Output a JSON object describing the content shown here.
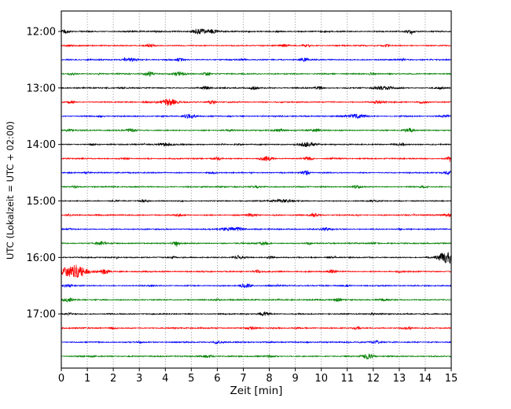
{
  "axes": {
    "xlabel": "Zeit  [min]",
    "ylabel": "UTC (Lokalzeit = UTC + 02:00)"
  },
  "chart_data": {
    "type": "line",
    "subtype": "helicorder-seismogram",
    "title": "",
    "xlabel": "Zeit  [min]",
    "ylabel": "UTC (Lokalzeit = UTC + 02:00)",
    "xlim": [
      0,
      15
    ],
    "minutes_per_line": 15,
    "grid": {
      "vertical_dotted": true,
      "horizontal": false
    },
    "x_ticks": [
      "0",
      "1",
      "2",
      "3",
      "4",
      "5",
      "6",
      "7",
      "8",
      "9",
      "10",
      "11",
      "12",
      "13",
      "14",
      "15"
    ],
    "y_tick_labels": [
      "12:00",
      "13:00",
      "14:00",
      "15:00",
      "16:00",
      "17:00"
    ],
    "color_cycle": [
      "#000000",
      "#ff0000",
      "#0000ff",
      "#008000"
    ],
    "traces": [
      {
        "start": "12:00",
        "label": "12:00",
        "color": "#000000",
        "base": 0.65,
        "bursts": [
          [
            0.15,
            1.8,
            0.12
          ],
          [
            5.35,
            3.2,
            0.22
          ],
          [
            5.8,
            1.6,
            0.15
          ],
          [
            8.3,
            1.2,
            0.1
          ],
          [
            13.4,
            1.6,
            0.12
          ],
          [
            10.1,
            0.9,
            0.1
          ]
        ]
      },
      {
        "start": "12:15",
        "label": "",
        "color": "#ff0000",
        "base": 0.65,
        "bursts": [
          [
            3.4,
            1.4,
            0.12
          ],
          [
            8.6,
            2.0,
            0.12
          ],
          [
            9.4,
            1.3,
            0.1
          ],
          [
            12.5,
            1.1,
            0.1
          ],
          [
            0.3,
            1.0,
            0.1
          ]
        ]
      },
      {
        "start": "12:30",
        "label": "",
        "color": "#0000ff",
        "base": 0.65,
        "bursts": [
          [
            2.6,
            2.2,
            0.18
          ],
          [
            4.6,
            1.5,
            0.12
          ],
          [
            9.3,
            1.9,
            0.12
          ],
          [
            13.1,
            1.1,
            0.1
          ],
          [
            7.0,
            0.9,
            0.08
          ]
        ]
      },
      {
        "start": "12:45",
        "label": "",
        "color": "#008000",
        "base": 0.65,
        "bursts": [
          [
            3.4,
            2.6,
            0.15
          ],
          [
            4.5,
            2.6,
            0.18
          ],
          [
            5.6,
            1.4,
            0.1
          ],
          [
            11.9,
            1.1,
            0.1
          ],
          [
            0.4,
            1.2,
            0.1
          ]
        ]
      },
      {
        "start": "13:00",
        "label": "13:00",
        "color": "#000000",
        "base": 0.65,
        "bursts": [
          [
            5.6,
            1.9,
            0.15
          ],
          [
            7.4,
            1.8,
            0.15
          ],
          [
            9.9,
            2.0,
            0.12
          ],
          [
            12.4,
            2.2,
            0.25
          ],
          [
            14.6,
            1.3,
            0.1
          ],
          [
            2.3,
            1.0,
            0.1
          ]
        ]
      },
      {
        "start": "13:15",
        "label": "",
        "color": "#ff0000",
        "base": 0.65,
        "bursts": [
          [
            0.4,
            1.8,
            0.12
          ],
          [
            4.15,
            4.2,
            0.18
          ],
          [
            3.3,
            1.5,
            0.12
          ],
          [
            5.8,
            1.7,
            0.12
          ],
          [
            12.2,
            2.2,
            0.15
          ],
          [
            13.9,
            1.7,
            0.12
          ]
        ]
      },
      {
        "start": "13:30",
        "label": "",
        "color": "#0000ff",
        "base": 0.65,
        "bursts": [
          [
            4.9,
            3.2,
            0.15
          ],
          [
            11.3,
            2.2,
            0.3
          ],
          [
            14.8,
            1.4,
            0.1
          ],
          [
            1.5,
            0.9,
            0.08
          ]
        ]
      },
      {
        "start": "13:45",
        "label": "",
        "color": "#008000",
        "base": 0.65,
        "bursts": [
          [
            2.7,
            2.3,
            0.15
          ],
          [
            0.3,
            1.3,
            0.1
          ],
          [
            8.4,
            1.6,
            0.12
          ],
          [
            9.8,
            1.8,
            0.12
          ],
          [
            13.4,
            1.8,
            0.15
          ],
          [
            6.5,
            1.0,
            0.1
          ]
        ]
      },
      {
        "start": "14:00",
        "label": "14:00",
        "color": "#000000",
        "base": 0.65,
        "bursts": [
          [
            4.0,
            2.3,
            0.2
          ],
          [
            9.45,
            3.2,
            0.2
          ],
          [
            13.1,
            1.4,
            0.12
          ],
          [
            6.8,
            1.0,
            0.1
          ],
          [
            1.2,
            0.9,
            0.1
          ]
        ]
      },
      {
        "start": "14:15",
        "label": "",
        "color": "#ff0000",
        "base": 0.65,
        "bursts": [
          [
            6.0,
            1.8,
            0.12
          ],
          [
            7.9,
            2.2,
            0.15
          ],
          [
            9.5,
            1.8,
            0.12
          ],
          [
            14.9,
            1.4,
            0.1
          ],
          [
            2.5,
            0.9,
            0.08
          ]
        ]
      },
      {
        "start": "14:30",
        "label": "",
        "color": "#0000ff",
        "base": 0.65,
        "bursts": [
          [
            9.4,
            2.0,
            0.12
          ],
          [
            14.9,
            2.2,
            0.12
          ],
          [
            5.8,
            1.1,
            0.1
          ],
          [
            1.0,
            0.9,
            0.08
          ]
        ]
      },
      {
        "start": "14:45",
        "label": "",
        "color": "#008000",
        "base": 0.65,
        "bursts": [
          [
            11.3,
            1.6,
            0.12
          ],
          [
            7.5,
            1.0,
            0.1
          ],
          [
            0.5,
            1.0,
            0.1
          ],
          [
            13.9,
            0.9,
            0.08
          ]
        ]
      },
      {
        "start": "15:00",
        "label": "15:00",
        "color": "#000000",
        "base": 0.65,
        "bursts": [
          [
            3.2,
            1.7,
            0.12
          ],
          [
            8.55,
            2.3,
            0.25
          ],
          [
            2.0,
            1.1,
            0.1
          ],
          [
            12.0,
            0.9,
            0.1
          ]
        ]
      },
      {
        "start": "15:15",
        "label": "",
        "color": "#ff0000",
        "base": 0.65,
        "bursts": [
          [
            7.35,
            2.1,
            0.15
          ],
          [
            9.7,
            1.8,
            0.12
          ],
          [
            14.85,
            2.3,
            0.15
          ],
          [
            4.5,
            1.1,
            0.1
          ],
          [
            0.3,
            1.0,
            0.08
          ]
        ]
      },
      {
        "start": "15:30",
        "label": "",
        "color": "#0000ff",
        "base": 0.65,
        "bursts": [
          [
            6.6,
            2.7,
            0.25
          ],
          [
            10.2,
            1.8,
            0.12
          ],
          [
            0.3,
            1.1,
            0.1
          ],
          [
            13.0,
            0.8,
            0.08
          ]
        ]
      },
      {
        "start": "15:45",
        "label": "",
        "color": "#008000",
        "base": 0.65,
        "bursts": [
          [
            1.5,
            2.0,
            0.15
          ],
          [
            4.4,
            1.8,
            0.12
          ],
          [
            7.8,
            1.8,
            0.12
          ],
          [
            12.0,
            1.1,
            0.1
          ],
          [
            9.5,
            0.9,
            0.08
          ]
        ]
      },
      {
        "start": "16:00",
        "label": "16:00",
        "color": "#000000",
        "base": 0.65,
        "bursts": [
          [
            6.8,
            2.0,
            0.15
          ],
          [
            8.1,
            1.8,
            0.12
          ],
          [
            14.85,
            5.5,
            0.3
          ],
          [
            10.4,
            1.3,
            0.1
          ],
          [
            4.3,
            0.9,
            0.08
          ]
        ]
      },
      {
        "start": "16:15",
        "label": "",
        "color": "#ff0000",
        "base": 0.65,
        "bursts": [
          [
            0.45,
            7.5,
            0.4
          ],
          [
            1.7,
            2.2,
            0.15
          ],
          [
            10.4,
            2.2,
            0.15
          ],
          [
            7.5,
            1.3,
            0.1
          ],
          [
            13.0,
            0.9,
            0.08
          ]
        ]
      },
      {
        "start": "16:30",
        "label": "",
        "color": "#0000ff",
        "base": 0.65,
        "bursts": [
          [
            0.2,
            1.8,
            0.15
          ],
          [
            7.1,
            2.0,
            0.15
          ],
          [
            11.0,
            1.1,
            0.1
          ],
          [
            3.5,
            0.9,
            0.08
          ]
        ]
      },
      {
        "start": "16:45",
        "label": "",
        "color": "#008000",
        "base": 0.65,
        "bursts": [
          [
            0.3,
            2.2,
            0.15
          ],
          [
            10.6,
            1.8,
            0.12
          ],
          [
            12.4,
            1.8,
            0.12
          ],
          [
            6.0,
            0.9,
            0.08
          ]
        ]
      },
      {
        "start": "17:00",
        "label": "17:00",
        "color": "#000000",
        "base": 0.65,
        "bursts": [
          [
            7.8,
            2.3,
            0.15
          ],
          [
            0.3,
            1.3,
            0.1
          ],
          [
            12.0,
            1.0,
            0.1
          ],
          [
            4.0,
            0.8,
            0.08
          ]
        ]
      },
      {
        "start": "17:15",
        "label": "",
        "color": "#ff0000",
        "base": 0.65,
        "bursts": [
          [
            7.3,
            2.0,
            0.12
          ],
          [
            11.4,
            1.7,
            0.12
          ],
          [
            13.3,
            1.6,
            0.12
          ],
          [
            2.0,
            1.0,
            0.1
          ],
          [
            9.0,
            0.9,
            0.08
          ]
        ]
      },
      {
        "start": "17:30",
        "label": "",
        "color": "#0000ff",
        "base": 0.65,
        "bursts": [
          [
            6.0,
            2.2,
            0.15
          ],
          [
            12.1,
            2.0,
            0.15
          ],
          [
            3.0,
            0.8,
            0.08
          ]
        ]
      },
      {
        "start": "17:45",
        "label": "",
        "color": "#008000",
        "base": 0.65,
        "bursts": [
          [
            5.6,
            2.0,
            0.15
          ],
          [
            11.8,
            2.2,
            0.18
          ],
          [
            8.0,
            0.9,
            0.08
          ],
          [
            1.2,
            0.8,
            0.08
          ]
        ]
      }
    ]
  }
}
